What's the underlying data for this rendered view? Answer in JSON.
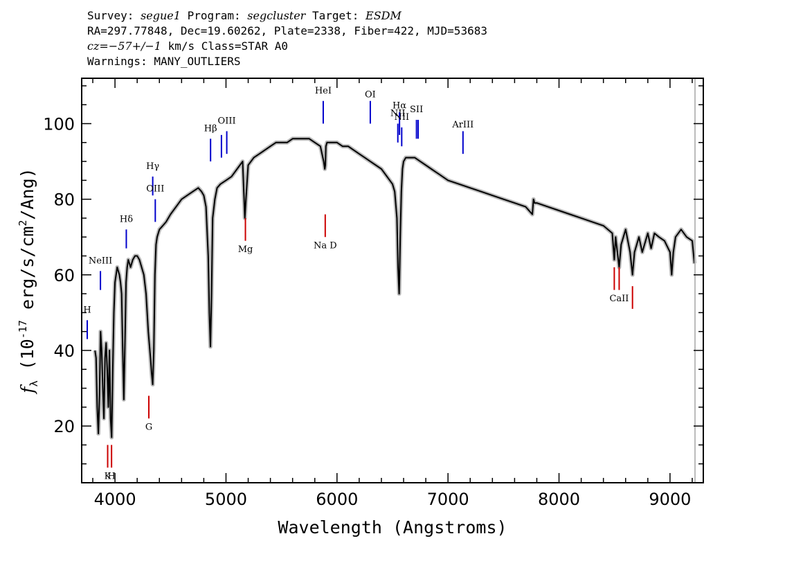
{
  "header": {
    "line1": {
      "survey_label": "Survey: ",
      "survey": "segue1",
      "program_label": " Program: ",
      "program": "segcluster",
      "target_label": " Target: ",
      "target": "ESDM"
    },
    "line2": "RA=297.77848, Dec=19.60262, Plate=2338, Fiber=422, MJD=53683",
    "line3": {
      "cz_label": "cz",
      "cz_value": "=−57+/−1",
      "rest": " km/s Class=STAR A0"
    },
    "line4": "Warnings: MANY_OUTLIERS"
  },
  "chart_data": {
    "type": "line",
    "xlabel": "Wavelength (Angstroms)",
    "ylabel": "f_λ (10^-17 erg/s/cm^2/Ang)",
    "xlim": [
      3700,
      9300
    ],
    "ylim": [
      5,
      112
    ],
    "xticks": [
      4000,
      5000,
      6000,
      7000,
      8000,
      9000
    ],
    "yticks": [
      20,
      40,
      60,
      80,
      100
    ],
    "grid": false,
    "series": [
      {
        "color": "#000000",
        "error_band_color": "#bbbbbb",
        "x": [
          3820,
          3830,
          3840,
          3850,
          3860,
          3870,
          3880,
          3890,
          3900,
          3910,
          3920,
          3930,
          3940,
          3950,
          3960,
          3970,
          3980,
          3990,
          4000,
          4010,
          4020,
          4030,
          4040,
          4050,
          4060,
          4070,
          4080,
          4090,
          4100,
          4110,
          4120,
          4130,
          4140,
          4160,
          4180,
          4200,
          4220,
          4240,
          4260,
          4280,
          4300,
          4320,
          4330,
          4340,
          4350,
          4360,
          4370,
          4380,
          4400,
          4430,
          4460,
          4500,
          4550,
          4600,
          4650,
          4700,
          4750,
          4780,
          4800,
          4820,
          4840,
          4850,
          4860,
          4870,
          4880,
          4900,
          4920,
          4950,
          5000,
          5050,
          5100,
          5150,
          5170,
          5180,
          5200,
          5250,
          5300,
          5350,
          5400,
          5450,
          5500,
          5550,
          5600,
          5650,
          5700,
          5750,
          5800,
          5850,
          5880,
          5890,
          5895,
          5900,
          5910,
          5950,
          6000,
          6050,
          6100,
          6150,
          6200,
          6250,
          6300,
          6350,
          6400,
          6450,
          6500,
          6520,
          6540,
          6550,
          6560,
          6563,
          6570,
          6580,
          6590,
          6600,
          6620,
          6650,
          6700,
          6750,
          6800,
          6850,
          6900,
          6950,
          7000,
          7100,
          7200,
          7300,
          7400,
          7500,
          7600,
          7700,
          7760,
          7770,
          7780,
          7800,
          7900,
          8000,
          8100,
          8200,
          8300,
          8400,
          8480,
          8498,
          8510,
          8542,
          8560,
          8600,
          8640,
          8662,
          8680,
          8720,
          8750,
          8800,
          8830,
          8860,
          8900,
          8950,
          9000,
          9015,
          9030,
          9050,
          9100,
          9150,
          9200,
          9220
        ],
        "y": [
          40,
          38,
          25,
          18,
          28,
          45,
          40,
          30,
          22,
          38,
          42,
          35,
          25,
          40,
          22,
          17,
          35,
          50,
          58,
          60,
          62,
          61,
          60,
          58,
          55,
          40,
          27,
          42,
          58,
          62,
          64,
          63,
          62,
          64,
          65,
          65,
          64,
          62,
          60,
          55,
          45,
          38,
          34,
          31,
          40,
          60,
          68,
          70,
          72,
          73,
          74,
          76,
          78,
          80,
          81,
          82,
          83,
          82,
          81,
          78,
          65,
          50,
          41,
          55,
          75,
          80,
          83,
          84,
          85,
          86,
          88,
          90,
          75,
          80,
          89,
          91,
          92,
          93,
          94,
          95,
          95,
          95,
          96,
          96,
          96,
          96,
          95,
          94,
          90,
          88,
          89,
          94,
          95,
          95,
          95,
          94,
          94,
          93,
          92,
          91,
          90,
          89,
          88,
          86,
          84,
          82,
          75,
          62,
          55,
          59,
          70,
          82,
          88,
          90,
          91,
          91,
          91,
          90,
          89,
          88,
          87,
          86,
          85,
          84,
          83,
          82,
          81,
          80,
          79,
          78,
          76,
          80,
          79,
          79,
          78,
          77,
          76,
          75,
          74,
          73,
          71,
          64,
          70,
          62,
          68,
          72,
          66,
          60,
          66,
          70,
          66,
          71,
          67,
          71,
          70,
          69,
          66,
          60,
          66,
          70,
          72,
          70,
          69,
          63
        ]
      }
    ],
    "emission_lines": [
      {
        "label": "H",
        "lambda": 3750,
        "y1": 43,
        "y2": 48,
        "label_y": 50
      },
      {
        "label": "NeIII",
        "lambda": 3869,
        "y1": 56,
        "y2": 61,
        "label_y": 63
      },
      {
        "label": "Hδ",
        "lambda": 4102,
        "y1": 67,
        "y2": 72,
        "label_y": 74
      },
      {
        "label": "Hγ",
        "lambda": 4340,
        "y1": 81,
        "y2": 86,
        "label_y": 88
      },
      {
        "label": "OIII",
        "lambda": 4363,
        "y1": 74,
        "y2": 80,
        "label_y": 82
      },
      {
        "label": "Hβ",
        "lambda": 4861,
        "y1": 90,
        "y2": 96,
        "label_y": 98
      },
      {
        "label": "",
        "lambda": 4959,
        "y1": 91,
        "y2": 97,
        "label_y": 0
      },
      {
        "label": "OIII",
        "lambda": 5007,
        "y1": 92,
        "y2": 98,
        "label_y": 100
      },
      {
        "label": "HeI",
        "lambda": 5876,
        "y1": 100,
        "y2": 106,
        "label_y": 108
      },
      {
        "label": "OI",
        "lambda": 6300,
        "y1": 100,
        "y2": 106,
        "label_y": 107
      },
      {
        "label": "NII",
        "lambda": 6548,
        "y1": 95,
        "y2": 100,
        "label_y": 102
      },
      {
        "label": "Hα",
        "lambda": 6563,
        "y1": 97,
        "y2": 103,
        "label_y": 104
      },
      {
        "label": "NII",
        "lambda": 6583,
        "y1": 94,
        "y2": 99,
        "label_y": 101
      },
      {
        "label": "SII",
        "lambda": 6716,
        "y1": 96,
        "y2": 101,
        "label_y": 103
      },
      {
        "label": "",
        "lambda": 6731,
        "y1": 96,
        "y2": 101,
        "label_y": 0
      },
      {
        "label": "ArIII",
        "lambda": 7135,
        "y1": 92,
        "y2": 98,
        "label_y": 99
      }
    ],
    "absorption_lines": [
      {
        "label": "K",
        "lambda": 3934,
        "y1": 9,
        "y2": 15,
        "label_y": 6
      },
      {
        "label": "H",
        "lambda": 3969,
        "y1": 9,
        "y2": 15,
        "label_y": 6
      },
      {
        "label": "G",
        "lambda": 4305,
        "y1": 22,
        "y2": 28,
        "label_y": 19
      },
      {
        "label": "Mg",
        "lambda": 5175,
        "y1": 69,
        "y2": 75,
        "label_y": 66
      },
      {
        "label": "Na D",
        "lambda": 5894,
        "y1": 70,
        "y2": 76,
        "label_y": 67
      },
      {
        "label": "",
        "lambda": 8498,
        "y1": 56,
        "y2": 62,
        "label_y": 0
      },
      {
        "label": "CaII",
        "lambda": 8542,
        "y1": 56,
        "y2": 62,
        "label_y": 53
      },
      {
        "label": "",
        "lambda": 8662,
        "y1": 51,
        "y2": 57,
        "label_y": 0
      }
    ],
    "colors": {
      "emission": "#0000cc",
      "absorption": "#cc0000",
      "band": "#bbbbbb",
      "data": "#000000"
    }
  }
}
